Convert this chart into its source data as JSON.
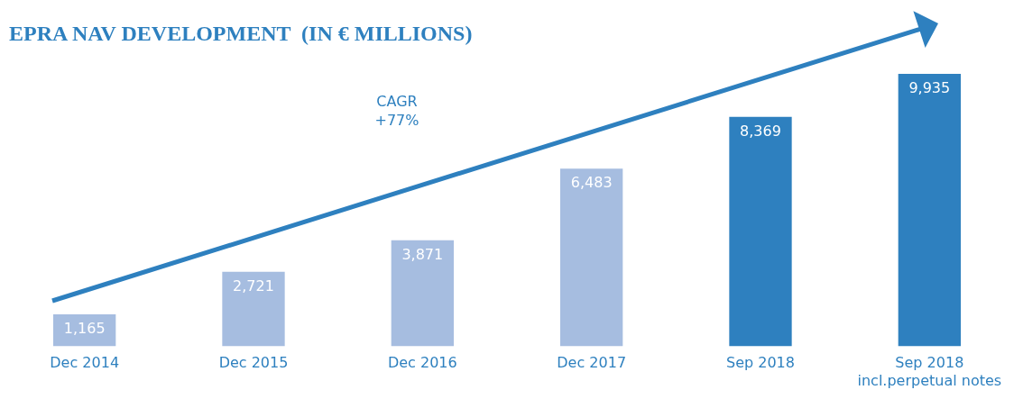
{
  "chart_data": {
    "type": "bar",
    "title": "EPRA NAV DEVELOPMENT  (IN € MILLIONS)",
    "categories": [
      "Dec 2014",
      "Dec 2015",
      "Dec 2016",
      "Dec 2017",
      "Sep 2018",
      "Sep 2018\nincl.perpetual notes"
    ],
    "values": [
      1165,
      2721,
      3871,
      6483,
      8369,
      9935
    ],
    "colors": [
      "#a6bde0",
      "#a6bde0",
      "#a6bde0",
      "#a6bde0",
      "#2e80bf",
      "#2e80bf"
    ],
    "value_labels": [
      "1,165",
      "2,721",
      "3,871",
      "6,483",
      "8,369",
      "9,935"
    ],
    "annotations": [
      "CAGR\n+77%"
    ],
    "grid": false,
    "legend": false
  }
}
